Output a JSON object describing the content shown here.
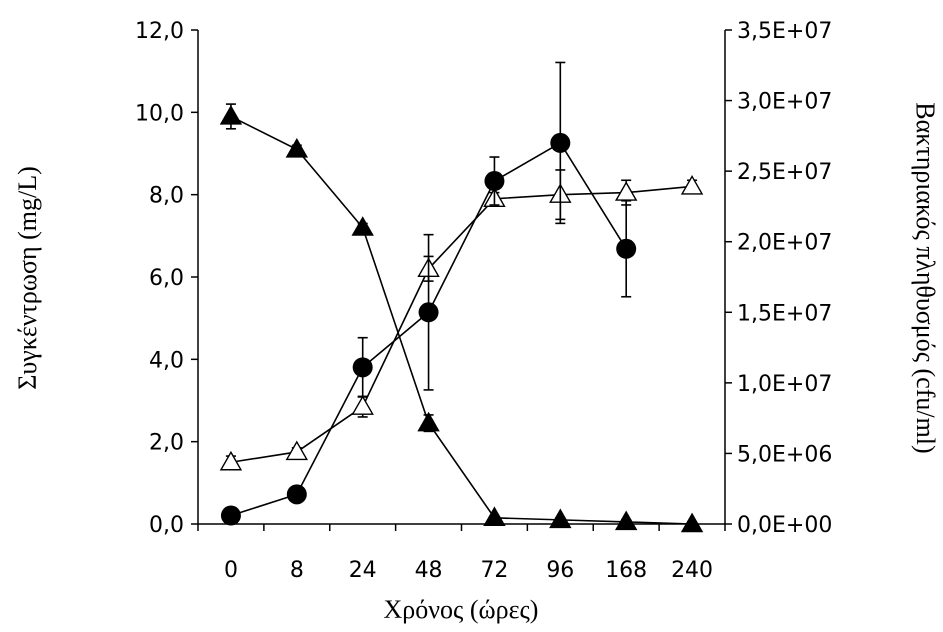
{
  "chart_data": {
    "type": "line",
    "xlabel": "Χρόνος (ώρες)",
    "ylabel_left": "Συγκέντρωση (mg/L)",
    "ylabel_right": "Βακτηριακός πληθυσμός (cfu/ml)",
    "categories": [
      "0",
      "8",
      "24",
      "48",
      "72",
      "96",
      "168",
      "240"
    ],
    "y_left": {
      "min": 0,
      "max": 12,
      "step": 2,
      "tick_labels": [
        "0,0",
        "2,0",
        "4,0",
        "6,0",
        "8,0",
        "10,0",
        "12,0"
      ]
    },
    "y_right": {
      "min": 0,
      "max": 35000000,
      "step": 5000000,
      "tick_labels": [
        "0,0E+00",
        "5,0E+06",
        "1,0E+07",
        "1,5E+07",
        "2,0E+07",
        "2,5E+07",
        "3,0E+07",
        "3,5E+07"
      ]
    },
    "grid": false,
    "legend": "none",
    "series": [
      {
        "marker": "triangle-filled",
        "axis": "left",
        "values": [
          9.9,
          9.1,
          7.2,
          2.45,
          0.15,
          0.1,
          0.05,
          0.0
        ],
        "errors": [
          0.3,
          0.1,
          0.1,
          0.2,
          0.05,
          0.05,
          0.05,
          0.05
        ]
      },
      {
        "marker": "triangle-open",
        "axis": "left",
        "values": [
          1.5,
          1.75,
          2.85,
          6.2,
          7.9,
          8.0,
          8.05,
          8.2
        ],
        "errors": [
          0.15,
          0.1,
          0.25,
          0.3,
          0.15,
          0.6,
          0.3,
          0.15
        ]
      },
      {
        "marker": "circle-filled",
        "axis": "right",
        "values": [
          600000,
          2100000,
          11100000,
          15000000,
          24300000,
          27000000,
          19500000,
          null
        ],
        "errors": [
          200000,
          200000,
          2100000,
          5500000,
          1700000,
          5700000,
          3400000,
          null
        ]
      }
    ]
  }
}
